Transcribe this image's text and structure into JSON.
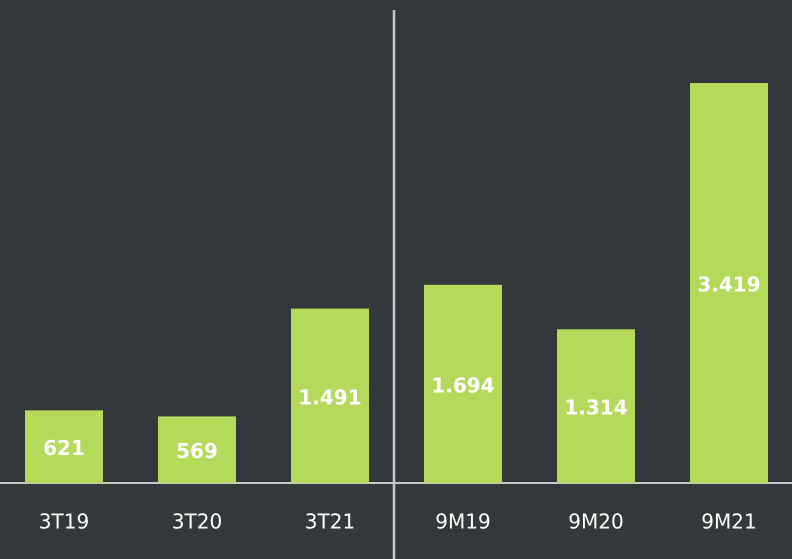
{
  "chart_data": {
    "type": "bar",
    "categories": [
      "3T19",
      "3T20",
      "3T21",
      "9M19",
      "9M20",
      "9M21"
    ],
    "values": [
      621,
      569,
      1491,
      1694,
      1314,
      3419
    ],
    "value_labels": [
      "621",
      "569",
      "1.491",
      "1.694",
      "1.314",
      "3.419"
    ],
    "color": "#b5d95a"
  }
}
